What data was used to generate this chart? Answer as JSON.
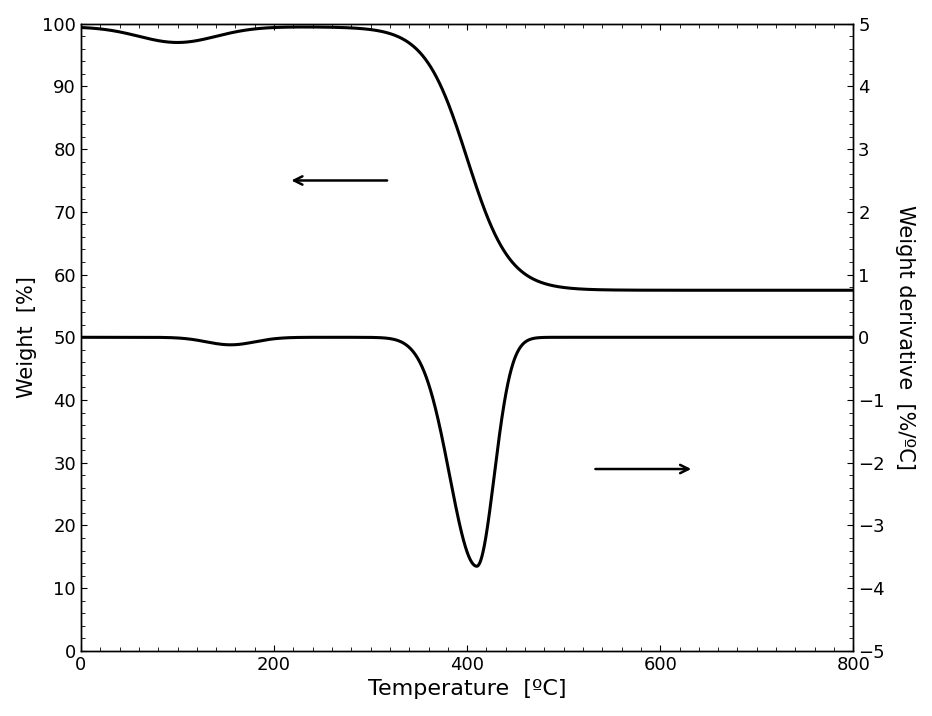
{
  "title": "",
  "xlabel": "Temperature  [ºC]",
  "ylabel_left": "Weight  [%]",
  "ylabel_right": "Weight derivative  [%/ºC]",
  "xlim": [
    0,
    800
  ],
  "ylim_left": [
    0,
    100
  ],
  "ylim_right": [
    -5,
    5
  ],
  "xticks": [
    0,
    200,
    400,
    600,
    800
  ],
  "yticks_left": [
    0,
    10,
    20,
    30,
    40,
    50,
    60,
    70,
    80,
    90,
    100
  ],
  "yticks_right": [
    -5,
    -4,
    -3,
    -2,
    -1,
    0,
    1,
    2,
    3,
    4,
    5
  ],
  "line_color": "#000000",
  "line_width": 2.2,
  "background_color": "#ffffff",
  "xlabel_fontsize": 16,
  "ylabel_fontsize": 15,
  "tick_fontsize": 13
}
